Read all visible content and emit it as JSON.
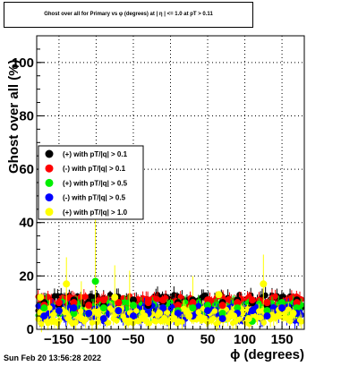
{
  "header": {
    "title": "Ghost over all for Primary vs φ (degrees) at | η | <= 1.0 at pT > 0.11"
  },
  "footer": {
    "timestamp": "Sun Feb 20 13:56:28 2022"
  },
  "chart_data": {
    "type": "scatter",
    "title": "Ghost over all for Primary vs φ (degrees) at | η | <= 1.0 at pT > 0.11",
    "xlabel": "ϕ (degrees)",
    "ylabel": "Ghost over all (%)",
    "xlim": [
      -180,
      180
    ],
    "ylim": [
      0,
      110
    ],
    "x_ticks": [
      -150,
      -100,
      -50,
      0,
      50,
      100,
      150
    ],
    "y_ticks": [
      0,
      20,
      40,
      60,
      80,
      100
    ],
    "x_tick_labels": [
      "−150",
      "−100",
      "−50",
      "0",
      "50",
      "100",
      "150"
    ],
    "y_tick_labels": [
      "0",
      "20",
      "40",
      "60",
      "80",
      "100"
    ],
    "grid": true,
    "legend_position": "left",
    "series": [
      {
        "name": "(+) with pT/|q| > 0.1",
        "color": "#000000",
        "x": [
          -170,
          -150,
          -130,
          -110,
          -90,
          -70,
          -50,
          -30,
          -10,
          10,
          30,
          50,
          70,
          90,
          110,
          130,
          150,
          170
        ],
        "y": [
          10,
          9,
          11,
          10,
          9,
          10,
          11,
          9,
          10,
          10,
          11,
          9,
          10,
          11,
          10,
          9,
          10,
          11
        ]
      },
      {
        "name": "(-) with pT/|q| > 0.1",
        "color": "#ff0000",
        "x": [
          -170,
          -150,
          -130,
          -110,
          -90,
          -70,
          -50,
          -30,
          -10,
          10,
          30,
          50,
          70,
          90,
          110,
          130,
          150,
          170
        ],
        "y": [
          9,
          10,
          10,
          9,
          11,
          10,
          9,
          10,
          11,
          9,
          10,
          11,
          9,
          10,
          11,
          10,
          9,
          10
        ]
      },
      {
        "name": "(+) with pT/|q| > 0.5",
        "color": "#00ee00",
        "x": [
          -170,
          -150,
          -130,
          -101,
          -90,
          -70,
          -50,
          -30,
          -10,
          10,
          30,
          50,
          70,
          90,
          110,
          130,
          150,
          170
        ],
        "y": [
          8,
          7,
          6,
          18,
          8,
          7,
          9,
          6,
          8,
          7,
          8,
          9,
          6,
          8,
          3,
          7,
          10,
          8
        ]
      },
      {
        "name": "(-) with pT/|q| > 0.5",
        "color": "#0000ff",
        "x": [
          -170,
          -150,
          -130,
          -110,
          -90,
          -70,
          -50,
          -30,
          -10,
          10,
          30,
          50,
          70,
          90,
          110,
          130,
          150,
          170
        ],
        "y": [
          5,
          7,
          8,
          6,
          4,
          7,
          5,
          6,
          8,
          6,
          5,
          7,
          4,
          6,
          7,
          5,
          8,
          6
        ]
      },
      {
        "name": "(+) with pT/|q| > 1.0",
        "color": "#ffff00",
        "x": [
          -175,
          -158,
          -140,
          -120,
          -98,
          -75,
          -55,
          -35,
          -15,
          5,
          25,
          45,
          65,
          85,
          105,
          125,
          145,
          165
        ],
        "y": [
          12,
          3,
          17,
          4,
          6,
          12,
          3,
          5,
          6,
          4,
          5,
          4,
          13,
          5,
          4,
          17,
          5,
          6
        ]
      }
    ]
  }
}
